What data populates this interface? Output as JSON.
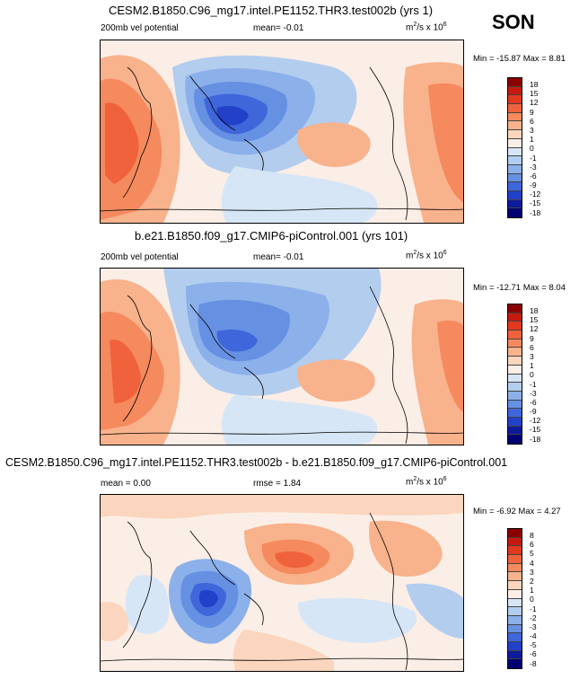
{
  "season": "SON",
  "panels": [
    {
      "title": "CESM2.B1850.C96_mg17.intel.PE1152.THR3.test002b (yrs 1)",
      "variable": "200mb vel potential",
      "stat": "mean=  -0.01",
      "units_base": "m",
      "units_sup": "2",
      "units_mid": "/s x 10",
      "units_exp": "6",
      "minmax": "Min = -15.87 Max =   8.81",
      "levels": [
        "18",
        "15",
        "12",
        "9",
        "6",
        "3",
        "1",
        "0",
        "-1",
        "-3",
        "-6",
        "-9",
        "-12",
        "-15",
        "-18"
      ]
    },
    {
      "title": "b.e21.B1850.f09_g17.CMIP6-piControl.001 (yrs 101)",
      "variable": "200mb vel potential",
      "stat": "mean=  -0.01",
      "units_base": "m",
      "units_sup": "2",
      "units_mid": "/s x 10",
      "units_exp": "6",
      "minmax": "Min = -12.71 Max =   8.04",
      "levels": [
        "18",
        "15",
        "12",
        "9",
        "6",
        "3",
        "1",
        "0",
        "-1",
        "-3",
        "-6",
        "-9",
        "-12",
        "-15",
        "-18"
      ]
    },
    {
      "title": "CESM2.B1850.C96_mg17.intel.PE1152.THR3.test002b - b.e21.B1850.f09_g17.CMIP6-piControl.001",
      "mean": "mean =   0.00",
      "rmse": "rmse =   1.84",
      "units_base": "m",
      "units_sup": "2",
      "units_mid": "/s x 10",
      "units_exp": "6",
      "minmax": "Min =  -6.92 Max =   4.27",
      "levels": [
        "8",
        "6",
        "5",
        "4",
        "3",
        "2",
        "1",
        "0",
        "-1",
        "-2",
        "-3",
        "-4",
        "-5",
        "-6",
        "-8"
      ]
    }
  ],
  "colors": {
    "scale": [
      "#8b0000",
      "#c41a10",
      "#e0391e",
      "#f0623b",
      "#f48a5e",
      "#f8b28c",
      "#fbd5bd",
      "#fbeee6",
      "#d6e6f7",
      "#b3cdef",
      "#8cb0ea",
      "#6690e2",
      "#3f66da",
      "#2340c8",
      "#0d1a9a",
      "#000070"
    ]
  }
}
